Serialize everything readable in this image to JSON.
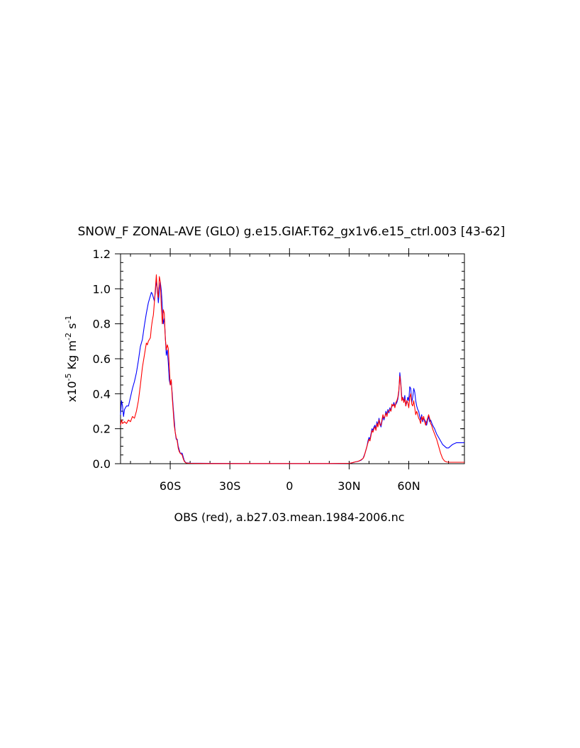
{
  "chart_data": {
    "type": "line",
    "title": "SNOW_F ZONAL-AVE (GLO) g.e15.GIAF.T62_gx1v6.e15_ctrl.003 [43-62]",
    "ylabel": {
      "base": "x10",
      "exp1": "-5",
      "mid": " Kg m",
      "exp2": "-2",
      "tail": " s",
      "exp3": "-1"
    },
    "xlabel": "OBS (red), a.b27.03.mean.1984-2006.nc",
    "xlim": [
      -85,
      88
    ],
    "ylim": [
      0,
      1.2
    ],
    "x_ticks": [
      {
        "value": -60,
        "label": "60S"
      },
      {
        "value": -30,
        "label": "30S"
      },
      {
        "value": 0,
        "label": "0"
      },
      {
        "value": 30,
        "label": "30N"
      },
      {
        "value": 60,
        "label": "60N"
      }
    ],
    "y_ticks": [
      {
        "value": 0.0,
        "label": "0.0"
      },
      {
        "value": 0.2,
        "label": "0.2"
      },
      {
        "value": 0.4,
        "label": "0.4"
      },
      {
        "value": 0.6,
        "label": "0.6"
      },
      {
        "value": 0.8,
        "label": "0.8"
      },
      {
        "value": 1.0,
        "label": "1.0"
      },
      {
        "value": 1.2,
        "label": "1.2"
      }
    ],
    "series": [
      {
        "color": "#0000ff",
        "points": [
          [
            -85,
            0.28
          ],
          [
            -84.5,
            0.36
          ],
          [
            -84,
            0.33
          ],
          [
            -83.5,
            0.27
          ],
          [
            -83,
            0.31
          ],
          [
            -82,
            0.33
          ],
          [
            -81,
            0.33
          ],
          [
            -80,
            0.38
          ],
          [
            -79,
            0.43
          ],
          [
            -78,
            0.47
          ],
          [
            -77,
            0.52
          ],
          [
            -76,
            0.59
          ],
          [
            -75,
            0.67
          ],
          [
            -74,
            0.71
          ],
          [
            -73,
            0.79
          ],
          [
            -72,
            0.86
          ],
          [
            -71,
            0.92
          ],
          [
            -70,
            0.96
          ],
          [
            -69.5,
            0.98
          ],
          [
            -69,
            0.97
          ],
          [
            -68.5,
            0.95
          ],
          [
            -68,
            0.93
          ],
          [
            -67.5,
            0.98
          ],
          [
            -67,
            1.05
          ],
          [
            -66.5,
            1.0
          ],
          [
            -66,
            0.92
          ],
          [
            -65.5,
            0.99
          ],
          [
            -65,
            1.04
          ],
          [
            -64.5,
            0.99
          ],
          [
            -64,
            0.9
          ],
          [
            -63.5,
            0.8
          ],
          [
            -63,
            0.83
          ],
          [
            -62.5,
            0.73
          ],
          [
            -62,
            0.62
          ],
          [
            -61.5,
            0.65
          ],
          [
            -61,
            0.58
          ],
          [
            -60.5,
            0.48
          ],
          [
            -60,
            0.45
          ],
          [
            -59.5,
            0.47
          ],
          [
            -59,
            0.4
          ],
          [
            -58.5,
            0.32
          ],
          [
            -58,
            0.25
          ],
          [
            -57.5,
            0.18
          ],
          [
            -57,
            0.14
          ],
          [
            -56.5,
            0.14
          ],
          [
            -56,
            0.1
          ],
          [
            -55.5,
            0.08
          ],
          [
            -55,
            0.06
          ],
          [
            -54,
            0.06
          ],
          [
            -53.5,
            0.04
          ],
          [
            -53,
            0.02
          ],
          [
            -52.5,
            0.01
          ],
          [
            -52,
            0.005
          ],
          [
            -50,
            0.003
          ],
          [
            -40,
            0.002
          ],
          [
            -20,
            0.001
          ],
          [
            0,
            0.001
          ],
          [
            20,
            0.001
          ],
          [
            30,
            0.002
          ],
          [
            31,
            0.004
          ],
          [
            32,
            0.006
          ],
          [
            33,
            0.01
          ],
          [
            34,
            0.012
          ],
          [
            35,
            0.015
          ],
          [
            36,
            0.02
          ],
          [
            37,
            0.03
          ],
          [
            37.5,
            0.045
          ],
          [
            38,
            0.06
          ],
          [
            38.5,
            0.08
          ],
          [
            39,
            0.1
          ],
          [
            39.5,
            0.13
          ],
          [
            40,
            0.15
          ],
          [
            40.5,
            0.14
          ],
          [
            41,
            0.17
          ],
          [
            41.5,
            0.2
          ],
          [
            42,
            0.19
          ],
          [
            42.5,
            0.21
          ],
          [
            43,
            0.22
          ],
          [
            43.5,
            0.2
          ],
          [
            44,
            0.24
          ],
          [
            44.5,
            0.22
          ],
          [
            45,
            0.26
          ],
          [
            45.5,
            0.23
          ],
          [
            46,
            0.21
          ],
          [
            46.5,
            0.24
          ],
          [
            47,
            0.27
          ],
          [
            47.5,
            0.25
          ],
          [
            48,
            0.27
          ],
          [
            48.5,
            0.3
          ],
          [
            49,
            0.28
          ],
          [
            49.5,
            0.31
          ],
          [
            50,
            0.29
          ],
          [
            50.5,
            0.32
          ],
          [
            51,
            0.3
          ],
          [
            51.5,
            0.33
          ],
          [
            52,
            0.33
          ],
          [
            52.5,
            0.35
          ],
          [
            53,
            0.33
          ],
          [
            53.5,
            0.34
          ],
          [
            54,
            0.35
          ],
          [
            54.5,
            0.37
          ],
          [
            55,
            0.41
          ],
          [
            55.5,
            0.52
          ],
          [
            56,
            0.46
          ],
          [
            56.5,
            0.38
          ],
          [
            57,
            0.37
          ],
          [
            57.5,
            0.36
          ],
          [
            58,
            0.39
          ],
          [
            58.5,
            0.33
          ],
          [
            59,
            0.35
          ],
          [
            59.5,
            0.38
          ],
          [
            60,
            0.36
          ],
          [
            60.5,
            0.44
          ],
          [
            61,
            0.43
          ],
          [
            61.5,
            0.35
          ],
          [
            62,
            0.38
          ],
          [
            62.5,
            0.43
          ],
          [
            63,
            0.41
          ],
          [
            63.5,
            0.36
          ],
          [
            64,
            0.33
          ],
          [
            64.5,
            0.31
          ],
          [
            65,
            0.3
          ],
          [
            65.5,
            0.27
          ],
          [
            66,
            0.25
          ],
          [
            66.5,
            0.28
          ],
          [
            67,
            0.24
          ],
          [
            67.5,
            0.26
          ],
          [
            68,
            0.25
          ],
          [
            68.5,
            0.24
          ],
          [
            69,
            0.22
          ],
          [
            69.5,
            0.25
          ],
          [
            70,
            0.27
          ],
          [
            70.5,
            0.24
          ],
          [
            71,
            0.25
          ],
          [
            72,
            0.22
          ],
          [
            73,
            0.2
          ],
          [
            74,
            0.17
          ],
          [
            75,
            0.15
          ],
          [
            76,
            0.13
          ],
          [
            77,
            0.11
          ],
          [
            78,
            0.1
          ],
          [
            79,
            0.09
          ],
          [
            80,
            0.09
          ],
          [
            81,
            0.1
          ],
          [
            82,
            0.11
          ],
          [
            84,
            0.12
          ],
          [
            86,
            0.12
          ],
          [
            88,
            0.12
          ]
        ]
      },
      {
        "color": "#ff0000",
        "points": [
          [
            -85,
            0.22
          ],
          [
            -84.5,
            0.25
          ],
          [
            -84,
            0.23
          ],
          [
            -83,
            0.24
          ],
          [
            -82,
            0.23
          ],
          [
            -81,
            0.25
          ],
          [
            -80,
            0.24
          ],
          [
            -79,
            0.27
          ],
          [
            -78,
            0.26
          ],
          [
            -77,
            0.3
          ],
          [
            -76,
            0.36
          ],
          [
            -75,
            0.45
          ],
          [
            -74,
            0.55
          ],
          [
            -73,
            0.62
          ],
          [
            -72,
            0.69
          ],
          [
            -71.5,
            0.68
          ],
          [
            -71,
            0.7
          ],
          [
            -70,
            0.72
          ],
          [
            -69.5,
            0.78
          ],
          [
            -69,
            0.82
          ],
          [
            -68.5,
            0.85
          ],
          [
            -68,
            0.92
          ],
          [
            -67.5,
            1.0
          ],
          [
            -67,
            1.08
          ],
          [
            -66.5,
            0.98
          ],
          [
            -66,
            0.95
          ],
          [
            -65.5,
            1.07
          ],
          [
            -65,
            1.04
          ],
          [
            -64.5,
            0.9
          ],
          [
            -64,
            0.8
          ],
          [
            -63.5,
            0.88
          ],
          [
            -63,
            0.86
          ],
          [
            -62.5,
            0.72
          ],
          [
            -62,
            0.65
          ],
          [
            -61.5,
            0.68
          ],
          [
            -61,
            0.66
          ],
          [
            -60.5,
            0.56
          ],
          [
            -60,
            0.45
          ],
          [
            -59.5,
            0.48
          ],
          [
            -59,
            0.38
          ],
          [
            -58.5,
            0.3
          ],
          [
            -58,
            0.22
          ],
          [
            -57.5,
            0.18
          ],
          [
            -57,
            0.15
          ],
          [
            -56.5,
            0.13
          ],
          [
            -56,
            0.09
          ],
          [
            -55.5,
            0.07
          ],
          [
            -55,
            0.06
          ],
          [
            -54,
            0.05
          ],
          [
            -53.5,
            0.03
          ],
          [
            -53,
            0.015
          ],
          [
            -52.5,
            0.008
          ],
          [
            -52,
            0.004
          ],
          [
            -50,
            0.002
          ],
          [
            -40,
            0.001
          ],
          [
            -20,
            0.001
          ],
          [
            0,
            0.001
          ],
          [
            20,
            0.001
          ],
          [
            30,
            0.002
          ],
          [
            31,
            0.004
          ],
          [
            32,
            0.007
          ],
          [
            33,
            0.01
          ],
          [
            34,
            0.012
          ],
          [
            35,
            0.016
          ],
          [
            36,
            0.022
          ],
          [
            37,
            0.03
          ],
          [
            37.5,
            0.04
          ],
          [
            38,
            0.06
          ],
          [
            38.5,
            0.08
          ],
          [
            39,
            0.1
          ],
          [
            39.5,
            0.12
          ],
          [
            40,
            0.14
          ],
          [
            40.5,
            0.13
          ],
          [
            41,
            0.16
          ],
          [
            41.5,
            0.19
          ],
          [
            42,
            0.18
          ],
          [
            42.5,
            0.2
          ],
          [
            43,
            0.21
          ],
          [
            43.5,
            0.19
          ],
          [
            44,
            0.23
          ],
          [
            44.5,
            0.21
          ],
          [
            45,
            0.25
          ],
          [
            45.5,
            0.22
          ],
          [
            46,
            0.22
          ],
          [
            46.5,
            0.25
          ],
          [
            47,
            0.28
          ],
          [
            47.5,
            0.26
          ],
          [
            48,
            0.27
          ],
          [
            48.5,
            0.29
          ],
          [
            49,
            0.27
          ],
          [
            49.5,
            0.3
          ],
          [
            50,
            0.3
          ],
          [
            50.5,
            0.31
          ],
          [
            51,
            0.3
          ],
          [
            51.5,
            0.34
          ],
          [
            52,
            0.33
          ],
          [
            52.5,
            0.34
          ],
          [
            53,
            0.32
          ],
          [
            53.5,
            0.35
          ],
          [
            54,
            0.36
          ],
          [
            54.5,
            0.38
          ],
          [
            55,
            0.42
          ],
          [
            55.5,
            0.5
          ],
          [
            56,
            0.45
          ],
          [
            56.5,
            0.36
          ],
          [
            57,
            0.38
          ],
          [
            57.5,
            0.35
          ],
          [
            58,
            0.37
          ],
          [
            58.5,
            0.33
          ],
          [
            59,
            0.36
          ],
          [
            59.5,
            0.35
          ],
          [
            60,
            0.32
          ],
          [
            60.5,
            0.38
          ],
          [
            61,
            0.4
          ],
          [
            61.5,
            0.34
          ],
          [
            62,
            0.33
          ],
          [
            62.5,
            0.36
          ],
          [
            63,
            0.32
          ],
          [
            63.5,
            0.28
          ],
          [
            64,
            0.3
          ],
          [
            64.5,
            0.28
          ],
          [
            65,
            0.26
          ],
          [
            65.5,
            0.25
          ],
          [
            66,
            0.23
          ],
          [
            66.5,
            0.27
          ],
          [
            67,
            0.25
          ],
          [
            67.5,
            0.27
          ],
          [
            68,
            0.24
          ],
          [
            68.5,
            0.22
          ],
          [
            69,
            0.24
          ],
          [
            69.5,
            0.26
          ],
          [
            70,
            0.28
          ],
          [
            70.5,
            0.26
          ],
          [
            71,
            0.23
          ],
          [
            71.5,
            0.22
          ],
          [
            72,
            0.2
          ],
          [
            73,
            0.17
          ],
          [
            74,
            0.14
          ],
          [
            75,
            0.1
          ],
          [
            76,
            0.06
          ],
          [
            77,
            0.03
          ],
          [
            78,
            0.015
          ],
          [
            79,
            0.01
          ],
          [
            80,
            0.008
          ],
          [
            84,
            0.008
          ],
          [
            88,
            0.008
          ]
        ]
      }
    ]
  }
}
